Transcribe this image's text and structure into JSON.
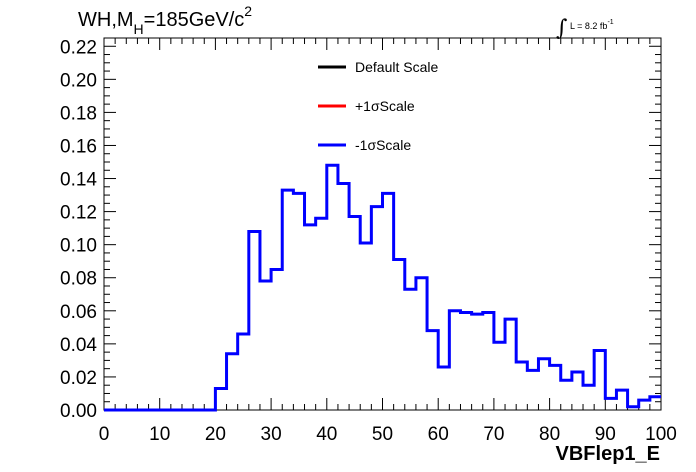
{
  "chart_data": {
    "type": "step-histogram",
    "title_parts": {
      "main": "WH,M",
      "sub": "H",
      "rest": "=185GeV/c",
      "sup": "2"
    },
    "luminosity": {
      "integral": "∫",
      "text": "L = 8.2 fb",
      "sup": "-1"
    },
    "xlabel": "VBFlep1_E",
    "ylabel": "",
    "xlim": [
      0,
      100
    ],
    "ylim": [
      0,
      0.225
    ],
    "x_ticks": [
      "0",
      "10",
      "20",
      "30",
      "40",
      "50",
      "60",
      "70",
      "80",
      "90",
      "100"
    ],
    "y_ticks": [
      "0.00",
      "0.02",
      "0.04",
      "0.06",
      "0.08",
      "0.10",
      "0.12",
      "0.14",
      "0.16",
      "0.18",
      "0.20",
      "0.22"
    ],
    "bin_width": 2,
    "bin_edges_start": 0,
    "legend": [
      {
        "name": "Default Scale",
        "color": "#000000"
      },
      {
        "name": "+1σScale",
        "color": "#ff0000"
      },
      {
        "name": "-1σScale",
        "color": "#0000ff"
      }
    ],
    "series": [
      {
        "name": "-1σScale",
        "color": "#0000ff",
        "values": [
          0,
          0,
          0,
          0,
          0,
          0,
          0,
          0,
          0,
          0,
          0.013,
          0.034,
          0.046,
          0.108,
          0.078,
          0.085,
          0.133,
          0.131,
          0.112,
          0.116,
          0.148,
          0.137,
          0.117,
          0.101,
          0.123,
          0.131,
          0.091,
          0.073,
          0.08,
          0.048,
          0.026,
          0.06,
          0.059,
          0.058,
          0.059,
          0.041,
          0.055,
          0.029,
          0.024,
          0.031,
          0.027,
          0.018,
          0.023,
          0.015,
          0.036,
          0.007,
          0.012,
          0.002,
          0.006,
          0.008
        ]
      }
    ]
  }
}
